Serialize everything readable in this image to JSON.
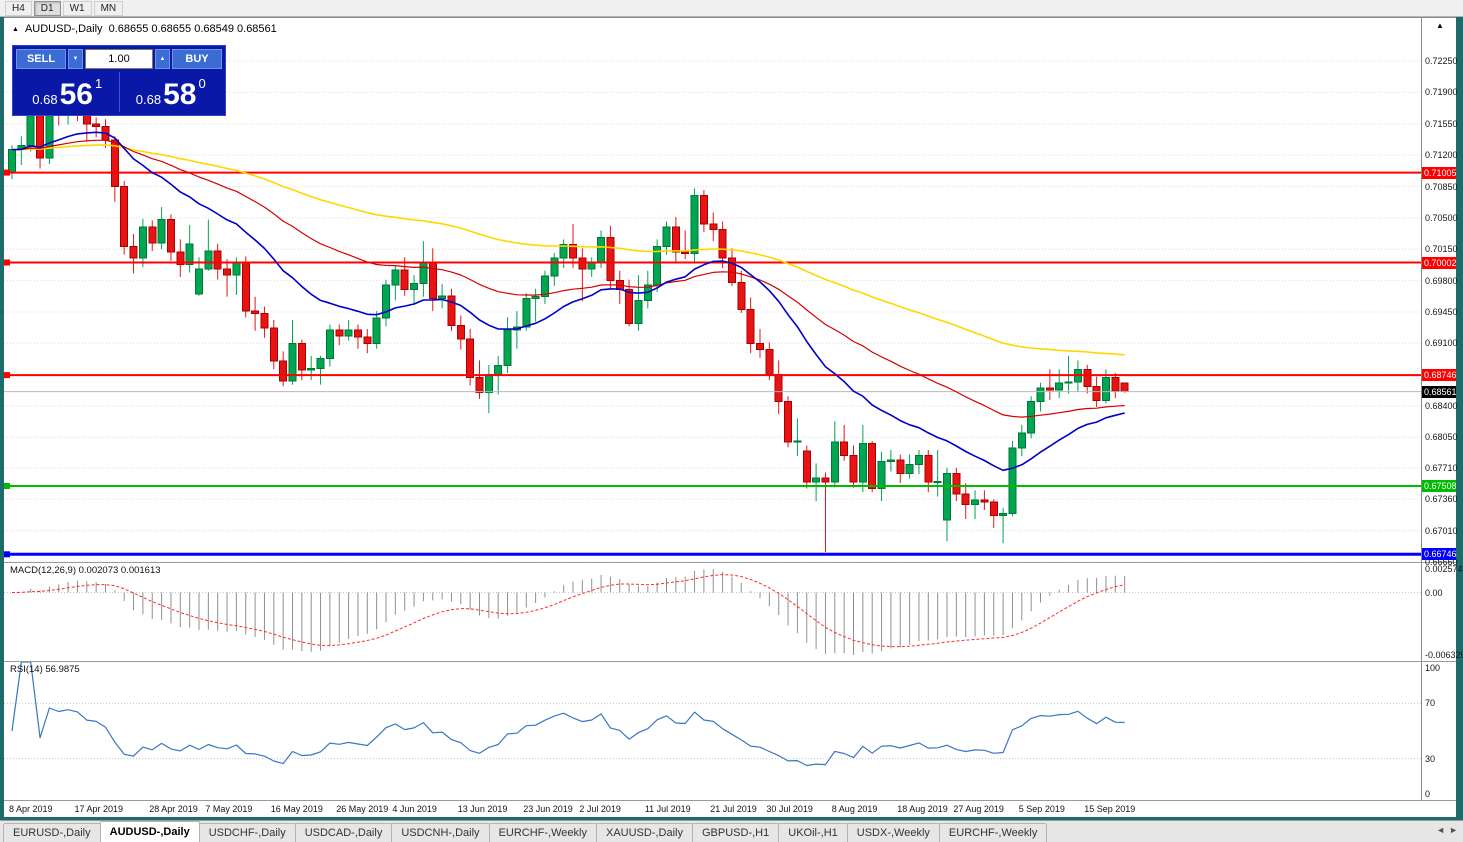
{
  "toolbar": {
    "timeframes": [
      {
        "label": "H4",
        "active": false
      },
      {
        "label": "D1",
        "active": true
      },
      {
        "label": "W1",
        "active": false
      },
      {
        "label": "MN",
        "active": false
      }
    ]
  },
  "header": {
    "marker": "▲",
    "title": "AUDUSD-,Daily",
    "ohlc": "0.68655 0.68655 0.68549 0.68561"
  },
  "icons": {
    "symbol_marker": "▲",
    "corner_arrow": "▲",
    "spinner_up": "▲",
    "spinner_down": "▼",
    "tab_scroll_left": "◄",
    "tab_scroll_right": "►"
  },
  "trade_panel": {
    "sell_label": "SELL",
    "buy_label": "BUY",
    "volume": "1.00",
    "sell_price": {
      "small": "0.68",
      "big": "56",
      "sup": "1"
    },
    "buy_price": {
      "small": "0.68",
      "big": "58",
      "sup": "0"
    }
  },
  "colors": {
    "bull": "#00a650",
    "bull_border": "#00753a",
    "bear": "#e81414",
    "bear_border": "#a80000",
    "macd_hist": "#8f8f8f",
    "macd_signal": "#ff2a2a",
    "rsi_line": "#3a75c4",
    "grid": "#dcdcdc",
    "current_price_line": "#b8b8b8",
    "panel_bg": "#0a18a8",
    "panel_button": "#3b6bd5"
  },
  "chart_data": {
    "type": "candlestick",
    "symbol": "AUDUSD-",
    "timeframe": "Daily",
    "price_axis": {
      "top": 0.7273,
      "bottom": 0.6666,
      "ticks": [
        "0.72250",
        "0.71900",
        "0.71550",
        "0.71200",
        "0.70850",
        "0.70500",
        "0.70150",
        "0.69800",
        "0.69450",
        "0.69100",
        "0.68400",
        "0.68050",
        "0.67710",
        "0.67360",
        "0.67010",
        "0.66660"
      ],
      "grid_extra": [
        0.6875
      ]
    },
    "levels": [
      {
        "value": 0.71005,
        "label": "0.71005",
        "color": "#ff0000",
        "width": 2
      },
      {
        "value": 0.70002,
        "label": "0.70002",
        "color": "#ff0000",
        "width": 2
      },
      {
        "value": 0.68746,
        "label": "0.68746",
        "color": "#ff0000",
        "width": 2
      },
      {
        "value": 0.67508,
        "label": "0.67508",
        "color": "#00bb00",
        "width": 2
      },
      {
        "value": 0.66746,
        "label": "0.66746",
        "color": "#0000ff",
        "width": 3
      }
    ],
    "current_price": {
      "value": 0.68561,
      "label": "0.68561"
    },
    "ma": [
      {
        "period": 100,
        "color": "#ffd700",
        "width": 1.6
      },
      {
        "period": 45,
        "color": "#d40000",
        "width": 1.2
      },
      {
        "period": 20,
        "color": "#0000c8",
        "width": 1.6
      }
    ],
    "macd": {
      "label_text": "MACD(12,26,9) 0.002073 0.001613",
      "fast": 12,
      "slow": 26,
      "signal": 9,
      "axis_top": "0.002574",
      "axis_zero": "0.00",
      "axis_bottom": "-0.006326"
    },
    "rsi": {
      "label_text": "RSI(14) 56.9875",
      "period": 14,
      "axis": [
        "100",
        "70",
        "30",
        "0"
      ],
      "guides": [
        70,
        30
      ]
    },
    "date_ticks": [
      {
        "label": "8 Apr 2019",
        "i": 0
      },
      {
        "label": "17 Apr 2019",
        "i": 7
      },
      {
        "label": "28 Apr 2019",
        "i": 15
      },
      {
        "label": "7 May 2019",
        "i": 21
      },
      {
        "label": "16 May 2019",
        "i": 28
      },
      {
        "label": "26 May 2019",
        "i": 35
      },
      {
        "label": "4 Jun 2019",
        "i": 41
      },
      {
        "label": "13 Jun 2019",
        "i": 48
      },
      {
        "label": "23 Jun 2019",
        "i": 55
      },
      {
        "label": "2 Jul 2019",
        "i": 61
      },
      {
        "label": "11 Jul 2019",
        "i": 68
      },
      {
        "label": "21 Jul 2019",
        "i": 75
      },
      {
        "label": "30 Jul 2019",
        "i": 81
      },
      {
        "label": "8 Aug 2019",
        "i": 88
      },
      {
        "label": "18 Aug 2019",
        "i": 95
      },
      {
        "label": "27 Aug 2019",
        "i": 101
      },
      {
        "label": "5 Sep 2019",
        "i": 108
      },
      {
        "label": "15 Sep 2019",
        "i": 115
      }
    ],
    "ohlc": [
      [
        0.71,
        0.7131,
        0.7093,
        0.7126
      ],
      [
        0.7126,
        0.7141,
        0.7109,
        0.7131
      ],
      [
        0.7131,
        0.7176,
        0.7124,
        0.7167
      ],
      [
        0.7167,
        0.7175,
        0.7105,
        0.7117
      ],
      [
        0.7117,
        0.718,
        0.711,
        0.7176
      ],
      [
        0.7176,
        0.7182,
        0.7153,
        0.717
      ],
      [
        0.717,
        0.7187,
        0.7154,
        0.7176
      ],
      [
        0.7176,
        0.7193,
        0.7158,
        0.7172
      ],
      [
        0.7172,
        0.7181,
        0.7136,
        0.7155
      ],
      [
        0.7155,
        0.7162,
        0.714,
        0.7152
      ],
      [
        0.7152,
        0.716,
        0.7128,
        0.7137
      ],
      [
        0.7137,
        0.7141,
        0.7068,
        0.7085
      ],
      [
        0.7085,
        0.7091,
        0.7009,
        0.7018
      ],
      [
        0.7018,
        0.7032,
        0.6988,
        0.7005
      ],
      [
        0.7005,
        0.7049,
        0.6995,
        0.704
      ],
      [
        0.704,
        0.7047,
        0.7013,
        0.7022
      ],
      [
        0.7022,
        0.7062,
        0.7015,
        0.7048
      ],
      [
        0.7048,
        0.7054,
        0.7002,
        0.7012
      ],
      [
        0.7012,
        0.7026,
        0.6984,
        0.6998
      ],
      [
        0.6998,
        0.7042,
        0.6989,
        0.7021
      ],
      [
        0.6965,
        0.7006,
        0.6963,
        0.6993
      ],
      [
        0.6993,
        0.7048,
        0.6991,
        0.7013
      ],
      [
        0.7013,
        0.7021,
        0.6981,
        0.6993
      ],
      [
        0.6993,
        0.7004,
        0.6962,
        0.6986
      ],
      [
        0.6986,
        0.7006,
        0.6964,
        0.7
      ],
      [
        0.7,
        0.7007,
        0.6939,
        0.6946
      ],
      [
        0.6946,
        0.6962,
        0.6924,
        0.6943
      ],
      [
        0.6943,
        0.6951,
        0.6916,
        0.6927
      ],
      [
        0.6927,
        0.6936,
        0.6881,
        0.689
      ],
      [
        0.689,
        0.6901,
        0.6862,
        0.6868
      ],
      [
        0.6868,
        0.6936,
        0.6864,
        0.691
      ],
      [
        0.691,
        0.6914,
        0.6869,
        0.688
      ],
      [
        0.688,
        0.6896,
        0.6869,
        0.6882
      ],
      [
        0.6882,
        0.6896,
        0.6864,
        0.6893
      ],
      [
        0.6893,
        0.6931,
        0.6884,
        0.6925
      ],
      [
        0.6925,
        0.6931,
        0.6908,
        0.6918
      ],
      [
        0.6918,
        0.6936,
        0.6913,
        0.6925
      ],
      [
        0.6925,
        0.6931,
        0.6904,
        0.6917
      ],
      [
        0.6917,
        0.6926,
        0.6899,
        0.691
      ],
      [
        0.691,
        0.6946,
        0.6904,
        0.6938
      ],
      [
        0.6938,
        0.6981,
        0.6929,
        0.6975
      ],
      [
        0.6975,
        0.6996,
        0.6958,
        0.6992
      ],
      [
        0.6992,
        0.7006,
        0.6963,
        0.697
      ],
      [
        0.697,
        0.6986,
        0.6953,
        0.6977
      ],
      [
        0.6977,
        0.7024,
        0.6962,
        0.7
      ],
      [
        0.7,
        0.7016,
        0.6946,
        0.696
      ],
      [
        0.696,
        0.6976,
        0.6949,
        0.6963
      ],
      [
        0.6963,
        0.6971,
        0.6924,
        0.693
      ],
      [
        0.693,
        0.6941,
        0.6903,
        0.6915
      ],
      [
        0.6915,
        0.6926,
        0.6863,
        0.6872
      ],
      [
        0.6872,
        0.6891,
        0.6848,
        0.6855
      ],
      [
        0.6855,
        0.6886,
        0.6832,
        0.6875
      ],
      [
        0.6875,
        0.6896,
        0.6853,
        0.6885
      ],
      [
        0.6885,
        0.6939,
        0.6877,
        0.6925
      ],
      [
        0.6925,
        0.6946,
        0.6904,
        0.6928
      ],
      [
        0.6928,
        0.6966,
        0.6924,
        0.696
      ],
      [
        0.696,
        0.6971,
        0.6934,
        0.6962
      ],
      [
        0.6962,
        0.6991,
        0.6954,
        0.6985
      ],
      [
        0.6985,
        0.7011,
        0.6974,
        0.7005
      ],
      [
        0.7005,
        0.7026,
        0.6994,
        0.702
      ],
      [
        0.702,
        0.7043,
        0.6994,
        0.7005
      ],
      [
        0.7005,
        0.7016,
        0.6957,
        0.6993
      ],
      [
        0.6993,
        0.7006,
        0.6984,
        0.7
      ],
      [
        0.7,
        0.7036,
        0.6994,
        0.7028
      ],
      [
        0.7028,
        0.7041,
        0.6971,
        0.698
      ],
      [
        0.698,
        0.6991,
        0.6954,
        0.697
      ],
      [
        0.697,
        0.6981,
        0.6929,
        0.6932
      ],
      [
        0.6932,
        0.6986,
        0.6924,
        0.6958
      ],
      [
        0.6958,
        0.6991,
        0.6949,
        0.6975
      ],
      [
        0.6975,
        0.7026,
        0.6967,
        0.7018
      ],
      [
        0.7018,
        0.7046,
        0.7009,
        0.704
      ],
      [
        0.704,
        0.7051,
        0.6999,
        0.7012
      ],
      [
        0.7012,
        0.7036,
        0.7004,
        0.701
      ],
      [
        0.701,
        0.7083,
        0.6999,
        0.7075
      ],
      [
        0.7075,
        0.7081,
        0.7034,
        0.7043
      ],
      [
        0.7043,
        0.7056,
        0.7024,
        0.7037
      ],
      [
        0.7037,
        0.7046,
        0.6994,
        0.7005
      ],
      [
        0.7005,
        0.7016,
        0.6974,
        0.6978
      ],
      [
        0.6978,
        0.6991,
        0.6944,
        0.6948
      ],
      [
        0.6948,
        0.6961,
        0.6899,
        0.691
      ],
      [
        0.691,
        0.6926,
        0.6894,
        0.6903
      ],
      [
        0.6903,
        0.6911,
        0.6869,
        0.6875
      ],
      [
        0.6875,
        0.6891,
        0.6831,
        0.6845
      ],
      [
        0.6845,
        0.6851,
        0.6794,
        0.68
      ],
      [
        0.68,
        0.6826,
        0.6784,
        0.6801
      ],
      [
        0.679,
        0.6796,
        0.6748,
        0.6755
      ],
      [
        0.6755,
        0.6776,
        0.6734,
        0.676
      ],
      [
        0.676,
        0.6766,
        0.6677,
        0.6755
      ],
      [
        0.6755,
        0.6823,
        0.6749,
        0.68
      ],
      [
        0.68,
        0.6819,
        0.6779,
        0.6785
      ],
      [
        0.6785,
        0.6796,
        0.6749,
        0.6755
      ],
      [
        0.6755,
        0.6819,
        0.6744,
        0.6798
      ],
      [
        0.6798,
        0.6801,
        0.6744,
        0.6748
      ],
      [
        0.6748,
        0.6789,
        0.6734,
        0.6778
      ],
      [
        0.6778,
        0.6791,
        0.6767,
        0.678
      ],
      [
        0.678,
        0.6786,
        0.6754,
        0.6765
      ],
      [
        0.6765,
        0.6786,
        0.6759,
        0.6775
      ],
      [
        0.6775,
        0.6791,
        0.6764,
        0.6785
      ],
      [
        0.6785,
        0.6791,
        0.6744,
        0.6755
      ],
      [
        0.6755,
        0.6791,
        0.6739,
        0.6756
      ],
      [
        0.6713,
        0.6771,
        0.6689,
        0.6765
      ],
      [
        0.6765,
        0.6771,
        0.6734,
        0.6742
      ],
      [
        0.6742,
        0.6754,
        0.6714,
        0.673
      ],
      [
        0.673,
        0.6746,
        0.6714,
        0.6735
      ],
      [
        0.6735,
        0.6746,
        0.6724,
        0.6733
      ],
      [
        0.6733,
        0.6736,
        0.6704,
        0.6718
      ],
      [
        0.6718,
        0.6726,
        0.6687,
        0.672
      ],
      [
        0.672,
        0.6801,
        0.6717,
        0.6793
      ],
      [
        0.6793,
        0.6819,
        0.6784,
        0.681
      ],
      [
        0.681,
        0.6851,
        0.6804,
        0.6845
      ],
      [
        0.6845,
        0.6866,
        0.6834,
        0.686
      ],
      [
        0.686,
        0.6881,
        0.6847,
        0.6858
      ],
      [
        0.6858,
        0.6881,
        0.6849,
        0.6866
      ],
      [
        0.6866,
        0.6896,
        0.6854,
        0.6867
      ],
      [
        0.6867,
        0.6891,
        0.6856,
        0.6881
      ],
      [
        0.6881,
        0.6886,
        0.6854,
        0.6862
      ],
      [
        0.6862,
        0.6873,
        0.6839,
        0.6846
      ],
      [
        0.6846,
        0.6881,
        0.6843,
        0.6872
      ],
      [
        0.6872,
        0.6877,
        0.6849,
        0.6857
      ],
      [
        0.68655,
        0.68655,
        0.68549,
        0.68561
      ]
    ]
  },
  "tabs": {
    "items": [
      {
        "label": "EURUSD-,Daily",
        "active": false
      },
      {
        "label": "AUDUSD-,Daily",
        "active": true
      },
      {
        "label": "USDCHF-,Daily",
        "active": false
      },
      {
        "label": "USDCAD-,Daily",
        "active": false
      },
      {
        "label": "USDCNH-,Daily",
        "active": false
      },
      {
        "label": "EURCHF-,Weekly",
        "active": false
      },
      {
        "label": "XAUUSD-,Daily",
        "active": false
      },
      {
        "label": "GBPUSD-,H1",
        "active": false
      },
      {
        "label": "UKOil-,H1",
        "active": false
      },
      {
        "label": "USDX-,Weekly",
        "active": false
      },
      {
        "label": "EURCHF-,Weekly",
        "active": false
      }
    ]
  }
}
